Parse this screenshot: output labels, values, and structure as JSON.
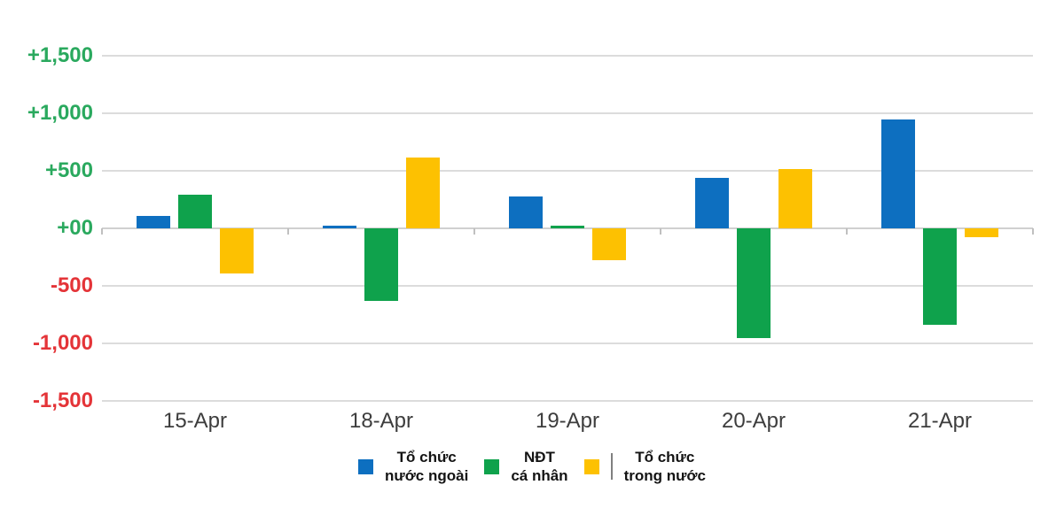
{
  "chart_data": {
    "type": "bar",
    "title": "",
    "categories": [
      "15-Apr",
      "18-Apr",
      "19-Apr",
      "20-Apr",
      "21-Apr"
    ],
    "series": [
      {
        "name": "Tổ chức nước ngoài",
        "label_lines": [
          "Tổ chức",
          "nước ngoài"
        ],
        "color": "#0d6fc0",
        "values": [
          110,
          25,
          275,
          440,
          945
        ]
      },
      {
        "name": "NĐT cá nhân",
        "label_lines": [
          "NĐT",
          "cá nhân"
        ],
        "color": "#0fa24c",
        "values": [
          290,
          -630,
          25,
          -950,
          -835
        ]
      },
      {
        "name": "Tổ chức trong nước",
        "label_lines": [
          "Tổ chức",
          "trong nước"
        ],
        "color": "#fdc101",
        "values": [
          -390,
          615,
          -275,
          515,
          -75
        ],
        "legend_divider": true
      }
    ],
    "ylim": [
      -1500,
      1500
    ],
    "yticks": [
      {
        "value": 1500,
        "label": "+1,500"
      },
      {
        "value": 1000,
        "label": "+1,000"
      },
      {
        "value": 500,
        "label": "+500"
      },
      {
        "value": 0,
        "label": "+00"
      },
      {
        "value": -500,
        "label": "-500"
      },
      {
        "value": -1000,
        "label": "-1,000"
      },
      {
        "value": -1500,
        "label": "-1,500"
      }
    ],
    "grid": true,
    "legend_position": "bottom",
    "colors": {
      "positive_label": "#2aa95e",
      "negative_label": "#e43438",
      "gridline": "#dcdcdc",
      "zero_line": "#d0d0d0",
      "tick": "#c0c0c0",
      "x_label": "#3d3d3d",
      "legend_text": "#141414",
      "legend_divider": "#808080",
      "background": "#ffffff"
    }
  }
}
